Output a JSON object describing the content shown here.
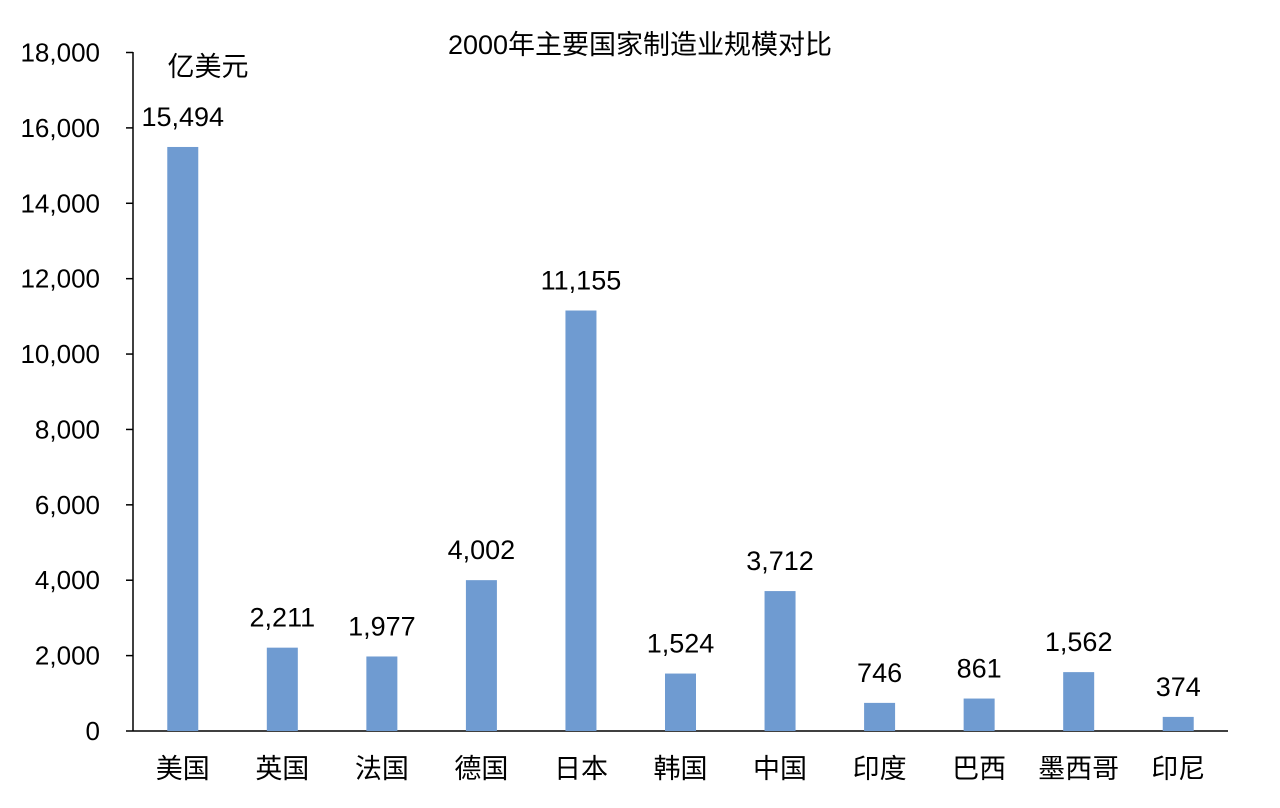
{
  "chart_data": {
    "type": "bar",
    "title": "2000年主要国家制造业规模对比",
    "unit_label": "亿美元",
    "categories": [
      "美国",
      "英国",
      "法国",
      "德国",
      "日本",
      "韩国",
      "中国",
      "印度",
      "巴西",
      "墨西哥",
      "印尼"
    ],
    "values": [
      15494,
      2211,
      1977,
      4002,
      11155,
      1524,
      3712,
      746,
      861,
      1562,
      374
    ],
    "data_labels": [
      "15,494",
      "2,211",
      "1,977",
      "4,002",
      "11,155",
      "1,524",
      "3,712",
      "746",
      "861",
      "1,562",
      "374"
    ],
    "yticks": [
      "0",
      "2,000",
      "4,000",
      "6,000",
      "8,000",
      "10,000",
      "12,000",
      "14,000",
      "16,000",
      "18,000"
    ],
    "ylim": [
      0,
      18000
    ],
    "bar_color": "#6f9bd1",
    "grid": false,
    "legend": "none"
  }
}
